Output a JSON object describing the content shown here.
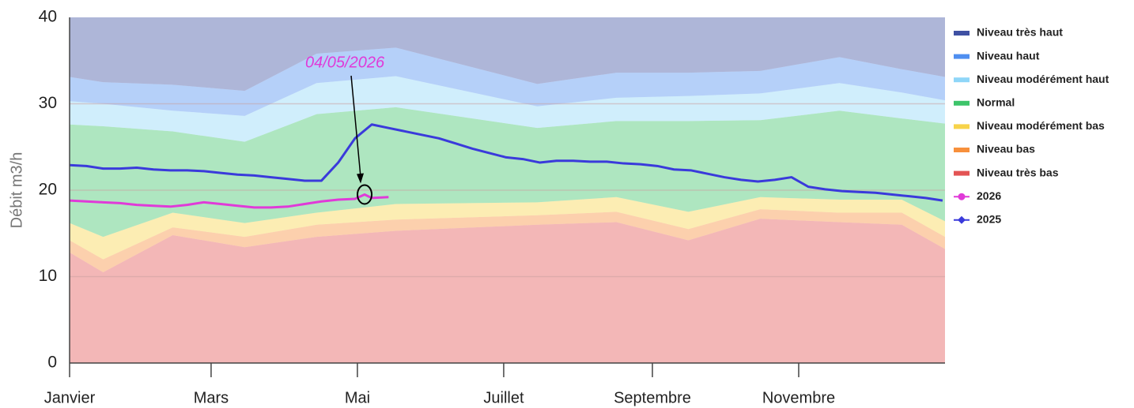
{
  "chart_data": {
    "type": "area",
    "ylabel": "Débit m3/h",
    "xlim": [
      0,
      365
    ],
    "ylim": [
      0,
      40
    ],
    "yticks": [
      0,
      10,
      20,
      30,
      40
    ],
    "xticks": [
      {
        "value": 0,
        "label": "Janvier"
      },
      {
        "value": 59,
        "label": "Mars"
      },
      {
        "value": 120,
        "label": "Mai"
      },
      {
        "value": 181,
        "label": "Juillet"
      },
      {
        "value": 243,
        "label": "Septembre"
      },
      {
        "value": 304,
        "label": "Novembre"
      }
    ],
    "grid": true,
    "legend": "right",
    "x": [
      0,
      14,
      43,
      73,
      103,
      136,
      195,
      228,
      258,
      288,
      321,
      347,
      365
    ],
    "annotation": {
      "text": "04/05/2026",
      "x": 123,
      "y": 19.5,
      "color": "#e03ad8"
    },
    "series": [
      {
        "name": "Niveau très haut",
        "type": "area",
        "color": "#3f51a3",
        "values": [
          6.9,
          7.5,
          7.8,
          8.5,
          4.2,
          3.5,
          7.7,
          6.4,
          6.4,
          6.2,
          4.6,
          6.0,
          6.9
        ]
      },
      {
        "name": "Niveau haut",
        "type": "area",
        "color": "#4f8ff0",
        "values": [
          2.8,
          2.5,
          3.0,
          2.9,
          3.4,
          3.3,
          2.6,
          2.9,
          2.7,
          2.6,
          3.0,
          2.7,
          2.7
        ]
      },
      {
        "name": "Niveau modérément haut",
        "type": "area",
        "color": "#8fd6f8",
        "values": [
          2.7,
          2.6,
          2.4,
          3.0,
          3.6,
          3.6,
          2.5,
          2.7,
          2.9,
          3.1,
          3.2,
          3.0,
          2.7
        ]
      },
      {
        "name": "Normal",
        "type": "area",
        "color": "#3dc46a",
        "values": [
          11.4,
          12.8,
          9.4,
          9.4,
          11.4,
          11.2,
          8.6,
          8.8,
          10.5,
          8.9,
          10.3,
          9.4,
          11.3
        ]
      },
      {
        "name": "Niveau modérément bas",
        "type": "area",
        "color": "#f7d34a",
        "values": [
          2.0,
          2.6,
          1.7,
          1.6,
          1.4,
          1.8,
          1.5,
          1.7,
          2.0,
          1.4,
          1.5,
          1.5,
          1.8
        ]
      },
      {
        "name": "Niveau bas",
        "type": "area",
        "color": "#f7903c",
        "values": [
          1.4,
          1.5,
          0.9,
          1.2,
          1.4,
          1.3,
          1.1,
          1.2,
          1.3,
          1.1,
          1.1,
          1.4,
          1.4
        ]
      },
      {
        "name": "Niveau très bas",
        "type": "area",
        "color": "#e35454",
        "values": [
          12.8,
          10.5,
          14.8,
          13.4,
          14.6,
          15.3,
          16.0,
          16.3,
          14.2,
          16.7,
          16.3,
          16.0,
          13.2
        ]
      },
      {
        "name": "2026",
        "type": "line",
        "marker": "circle",
        "color": "#e03ad8",
        "x": [
          0,
          7,
          14,
          21,
          28,
          35,
          42,
          49,
          56,
          63,
          70,
          77,
          84,
          91,
          98,
          105,
          112,
          119,
          123,
          126,
          133
        ],
        "values": [
          18.8,
          18.7,
          18.6,
          18.5,
          18.3,
          18.2,
          18.1,
          18.3,
          18.6,
          18.4,
          18.2,
          18.0,
          18.0,
          18.1,
          18.4,
          18.7,
          18.9,
          19.0,
          19.5,
          19.1,
          19.2
        ]
      },
      {
        "name": "2025",
        "type": "line",
        "marker": "diamond",
        "color": "#3a3adb",
        "x": [
          0,
          7,
          14,
          21,
          28,
          35,
          42,
          49,
          56,
          63,
          70,
          77,
          84,
          91,
          98,
          105,
          112,
          119,
          126,
          133,
          140,
          147,
          154,
          161,
          168,
          175,
          182,
          189,
          196,
          203,
          210,
          217,
          224,
          231,
          238,
          245,
          252,
          259,
          266,
          273,
          280,
          287,
          294,
          301,
          308,
          315,
          322,
          329,
          336,
          343,
          350,
          357,
          364
        ],
        "values": [
          22.9,
          22.8,
          22.5,
          22.5,
          22.6,
          22.4,
          22.3,
          22.3,
          22.2,
          22.0,
          21.8,
          21.7,
          21.5,
          21.3,
          21.1,
          21.1,
          23.2,
          26.0,
          27.6,
          27.2,
          26.8,
          26.4,
          26.0,
          25.4,
          24.8,
          24.3,
          23.8,
          23.6,
          23.2,
          23.4,
          23.4,
          23.3,
          23.3,
          23.1,
          23.0,
          22.8,
          22.4,
          22.3,
          21.9,
          21.5,
          21.2,
          21.0,
          21.2,
          21.5,
          20.4,
          20.1,
          19.9,
          19.8,
          19.7,
          19.5,
          19.3,
          19.1,
          18.8
        ]
      }
    ]
  }
}
